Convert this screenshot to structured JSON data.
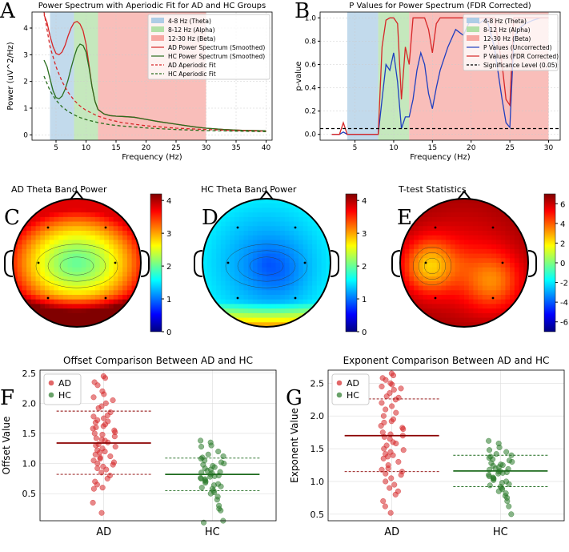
{
  "panel_letters": [
    "A",
    "B",
    "C",
    "D",
    "E",
    "F",
    "G"
  ],
  "chart_data": [
    {
      "id": "A",
      "type": "line",
      "title": "Power Spectrum with Aperiodic Fit for AD and HC Groups",
      "xlabel": "Frequency (Hz)",
      "ylabel": "Power (uV^2/Hz)",
      "xlim": [
        1,
        41
      ],
      "ylim": [
        -0.2,
        4.6
      ],
      "xticks": [
        5,
        10,
        15,
        20,
        25,
        30,
        35,
        40
      ],
      "yticks": [
        0,
        1,
        2,
        3,
        4
      ],
      "grid": true,
      "legend_position": "top-right",
      "bands": [
        {
          "name": "4-8 Hz (Theta)",
          "range": [
            4,
            8
          ],
          "color": "#aecde6"
        },
        {
          "name": "8-12 Hz (Alpha)",
          "range": [
            8,
            12
          ],
          "color": "#b2e0a7"
        },
        {
          "name": "12-30 Hz (Beta)",
          "range": [
            12,
            30
          ],
          "color": "#f7a8a3"
        }
      ],
      "series": [
        {
          "name": "AD Power Spectrum (Smoothed)",
          "color": "#d62728",
          "style": "solid",
          "x": [
            3,
            3.5,
            4,
            4.5,
            5,
            5.5,
            6,
            6.5,
            7,
            7.5,
            8,
            8.5,
            9,
            9.5,
            10,
            10.5,
            11,
            11.5,
            12,
            13,
            14,
            15,
            16,
            18,
            20,
            22,
            25,
            28,
            30,
            33,
            36,
            40
          ],
          "y": [
            4.5,
            4.2,
            3.7,
            3.3,
            3.05,
            3.0,
            3.1,
            3.35,
            3.7,
            4.0,
            4.2,
            4.25,
            4.15,
            3.9,
            3.4,
            2.6,
            1.8,
            1.25,
            0.95,
            0.78,
            0.72,
            0.7,
            0.69,
            0.66,
            0.58,
            0.5,
            0.4,
            0.3,
            0.25,
            0.2,
            0.17,
            0.15
          ]
        },
        {
          "name": "HC Power Spectrum (Smoothed)",
          "color": "#2a6e1e",
          "style": "solid",
          "x": [
            3,
            3.5,
            4,
            4.5,
            5,
            5.5,
            6,
            6.5,
            7,
            7.5,
            8,
            8.5,
            9,
            9.5,
            10,
            10.5,
            11,
            11.5,
            12,
            13,
            14,
            15,
            16,
            18,
            20,
            22,
            25,
            28,
            30,
            33,
            36,
            40
          ],
          "y": [
            2.8,
            2.55,
            2.1,
            1.65,
            1.4,
            1.35,
            1.45,
            1.7,
            2.05,
            2.5,
            2.9,
            3.25,
            3.4,
            3.35,
            3.1,
            2.5,
            1.8,
            1.25,
            0.95,
            0.78,
            0.72,
            0.7,
            0.69,
            0.66,
            0.58,
            0.5,
            0.4,
            0.3,
            0.25,
            0.2,
            0.17,
            0.15
          ]
        },
        {
          "name": "AD Aperiodic Fit",
          "color": "#d62728",
          "style": "dashed",
          "x": [
            3,
            4,
            5,
            6,
            7,
            8,
            9,
            10,
            12,
            14,
            16,
            20,
            25,
            30,
            35,
            40
          ],
          "y": [
            4.6,
            3.3,
            2.55,
            2.0,
            1.6,
            1.3,
            1.08,
            0.92,
            0.7,
            0.56,
            0.46,
            0.34,
            0.25,
            0.2,
            0.16,
            0.14
          ]
        },
        {
          "name": "HC Aperiodic Fit",
          "color": "#2a6e1e",
          "style": "dashed",
          "x": [
            3,
            4,
            5,
            6,
            7,
            8,
            9,
            10,
            12,
            14,
            16,
            20,
            25,
            30,
            35,
            40
          ],
          "y": [
            2.2,
            1.65,
            1.3,
            1.05,
            0.88,
            0.75,
            0.65,
            0.57,
            0.46,
            0.38,
            0.33,
            0.26,
            0.2,
            0.16,
            0.14,
            0.12
          ]
        }
      ]
    },
    {
      "id": "B",
      "type": "line",
      "title": "P Values for Power Spectrum (FDR Corrected)",
      "xlabel": "Frequency (Hz)",
      "ylabel": "p-value",
      "xlim": [
        0.5,
        31.5
      ],
      "ylim": [
        -0.05,
        1.05
      ],
      "xticks": [
        5,
        10,
        15,
        20,
        25,
        30
      ],
      "yticks": [
        0.0,
        0.2,
        0.4,
        0.6,
        0.8,
        1.0
      ],
      "grid": true,
      "legend_position": "top-right",
      "bands": [
        {
          "name": "4-8 Hz (Theta)",
          "range": [
            4,
            8
          ],
          "color": "#aecde6"
        },
        {
          "name": "8-12 Hz (Alpha)",
          "range": [
            8,
            12
          ],
          "color": "#b2e0a7"
        },
        {
          "name": "12-30 Hz (Beta)",
          "range": [
            12,
            30
          ],
          "color": "#f7a8a3"
        }
      ],
      "series": [
        {
          "name": "P Values (Uncorrected)",
          "color": "#1f3fbf",
          "style": "solid",
          "x": [
            2,
            3,
            3.5,
            4,
            5,
            6,
            7,
            8,
            8.5,
            9,
            9.5,
            10,
            10.5,
            11,
            11.5,
            12,
            12.5,
            13,
            13.5,
            14,
            14.5,
            15,
            15.5,
            16,
            17,
            18,
            19,
            20,
            21,
            22,
            23,
            24,
            24.5,
            25,
            25.5,
            26,
            27,
            28,
            29,
            30
          ],
          "y": [
            0.0,
            0.0,
            0.02,
            0.0,
            0.0,
            0.0,
            0.0,
            0.0,
            0.3,
            0.6,
            0.55,
            0.7,
            0.45,
            0.05,
            0.15,
            0.15,
            0.3,
            0.55,
            0.7,
            0.6,
            0.35,
            0.22,
            0.4,
            0.55,
            0.75,
            0.9,
            0.85,
            1.0,
            0.95,
            1.0,
            0.75,
            0.3,
            0.1,
            0.06,
            0.8,
            0.9,
            0.95,
            0.98,
            1.0,
            1.0
          ]
        },
        {
          "name": "P Values (FDR Corrected)",
          "color": "#d62728",
          "style": "solid",
          "x": [
            2,
            3,
            3.5,
            4,
            5,
            6,
            7,
            8,
            8.5,
            9,
            9.5,
            10,
            10.5,
            11,
            11.5,
            12,
            12.5,
            13,
            13.5,
            14,
            14.5,
            15,
            15.5,
            16,
            17,
            18,
            19,
            20,
            21,
            22,
            23,
            24,
            24.5,
            25,
            25.5,
            26,
            27,
            28,
            29,
            30
          ],
          "y": [
            0.0,
            0.0,
            0.1,
            0.0,
            0.0,
            0.0,
            0.0,
            0.0,
            0.75,
            0.98,
            1.0,
            1.0,
            0.95,
            0.3,
            0.75,
            0.6,
            1.0,
            1.0,
            1.0,
            1.0,
            0.9,
            0.7,
            0.95,
            1.0,
            1.0,
            1.0,
            1.0,
            1.0,
            1.0,
            1.0,
            1.0,
            0.6,
            0.3,
            0.25,
            1.0,
            1.0,
            1.0,
            1.0,
            1.0,
            1.0
          ]
        },
        {
          "name": "Significance Level (0.05)",
          "color": "#000000",
          "style": "dashed",
          "x": [
            0.5,
            31.5
          ],
          "y": [
            0.05,
            0.05
          ]
        }
      ]
    },
    {
      "id": "C",
      "type": "heatmap",
      "title": "AD Theta Band Power",
      "colorbar_ticks": [
        0,
        1,
        2,
        3,
        4
      ],
      "clim": [
        0,
        4.2
      ],
      "colormap": "jet",
      "center_value": 2.0,
      "edge_value": 3.6
    },
    {
      "id": "D",
      "type": "heatmap",
      "title": "HC Theta Band Power",
      "colorbar_ticks": [
        0,
        1,
        2,
        3,
        4
      ],
      "clim": [
        0,
        4.2
      ],
      "colormap": "jet",
      "center_value": 1.0,
      "edge_value": 1.6
    },
    {
      "id": "E",
      "type": "heatmap",
      "title": "T-test Statistics",
      "colorbar_ticks": [
        -6,
        -4,
        -2,
        0,
        2,
        4,
        6
      ],
      "clim": [
        -7,
        7
      ],
      "colormap": "jet",
      "center_value": 4.5,
      "edge_value": 6.5
    },
    {
      "id": "F",
      "type": "scatter",
      "title": "Offset Comparison Between AD and HC",
      "xlabel": "",
      "ylabel": "Offset Value",
      "categories": [
        "AD",
        "HC"
      ],
      "ylim": [
        0.05,
        2.55
      ],
      "yticks": [
        0.5,
        1.0,
        1.5,
        2.0,
        2.5
      ],
      "grid": true,
      "legend_position": "top-left",
      "series": [
        {
          "name": "AD",
          "color": "#d62728",
          "mean": 1.34,
          "sd_upper": 1.87,
          "sd_lower": 0.82,
          "values": [
            2.45,
            2.42,
            2.35,
            2.3,
            2.2,
            2.15,
            2.1,
            2.05,
            2.0,
            1.95,
            1.92,
            1.85,
            1.8,
            1.78,
            1.75,
            1.72,
            1.7,
            1.68,
            1.65,
            1.62,
            1.6,
            1.58,
            1.55,
            1.52,
            1.5,
            1.48,
            1.45,
            1.42,
            1.4,
            1.38,
            1.35,
            1.32,
            1.3,
            1.28,
            1.25,
            1.22,
            1.2,
            1.18,
            1.15,
            1.12,
            1.1,
            1.08,
            1.05,
            1.02,
            1.0,
            0.98,
            0.95,
            0.92,
            0.9,
            0.85,
            0.8,
            0.75,
            0.7,
            0.65,
            0.6,
            0.58,
            0.35,
            0.18
          ]
        },
        {
          "name": "HC",
          "color": "#2a7a2a",
          "mean": 0.82,
          "sd_upper": 1.09,
          "sd_lower": 0.55,
          "values": [
            1.38,
            1.35,
            1.3,
            1.28,
            1.2,
            1.15,
            1.12,
            1.1,
            1.08,
            1.05,
            1.02,
            1.0,
            0.98,
            0.96,
            0.94,
            0.92,
            0.9,
            0.88,
            0.86,
            0.85,
            0.84,
            0.82,
            0.8,
            0.79,
            0.78,
            0.76,
            0.75,
            0.74,
            0.72,
            0.7,
            0.68,
            0.66,
            0.64,
            0.62,
            0.6,
            0.58,
            0.55,
            0.52,
            0.5,
            0.45,
            0.4,
            0.3,
            0.25,
            0.22,
            0.05,
            0.02
          ]
        }
      ]
    },
    {
      "id": "G",
      "type": "scatter",
      "title": "Exponent Comparison Between AD and HC",
      "xlabel": "",
      "ylabel": "Exponent Value",
      "categories": [
        "AD",
        "HC"
      ],
      "ylim": [
        0.4,
        2.7
      ],
      "yticks": [
        0.5,
        1.0,
        1.5,
        2.0,
        2.5
      ],
      "grid": true,
      "legend_position": "top-left",
      "series": [
        {
          "name": "AD",
          "color": "#d62728",
          "mean": 1.7,
          "sd_upper": 2.26,
          "sd_lower": 1.15,
          "values": [
            2.65,
            2.62,
            2.58,
            2.55,
            2.5,
            2.48,
            2.45,
            2.42,
            2.4,
            2.35,
            2.3,
            2.28,
            2.25,
            2.2,
            2.15,
            2.1,
            2.05,
            2.0,
            1.95,
            1.92,
            1.9,
            1.85,
            1.82,
            1.8,
            1.75,
            1.72,
            1.7,
            1.68,
            1.65,
            1.6,
            1.58,
            1.55,
            1.5,
            1.48,
            1.45,
            1.42,
            1.4,
            1.38,
            1.35,
            1.3,
            1.25,
            1.2,
            1.18,
            1.15,
            1.12,
            1.1,
            1.05,
            1.0,
            0.95,
            0.9,
            0.85,
            0.8,
            0.7,
            0.62,
            0.52
          ]
        },
        {
          "name": "HC",
          "color": "#2a7a2a",
          "mean": 1.16,
          "sd_upper": 1.4,
          "sd_lower": 0.92,
          "values": [
            1.62,
            1.58,
            1.52,
            1.48,
            1.45,
            1.42,
            1.4,
            1.38,
            1.36,
            1.34,
            1.32,
            1.3,
            1.28,
            1.26,
            1.25,
            1.24,
            1.22,
            1.2,
            1.19,
            1.18,
            1.16,
            1.15,
            1.14,
            1.13,
            1.12,
            1.1,
            1.08,
            1.06,
            1.05,
            1.04,
            1.02,
            1.0,
            0.98,
            0.96,
            0.94,
            0.92,
            0.9,
            0.88,
            0.85,
            0.82,
            0.78,
            0.75,
            0.7,
            0.62,
            0.5
          ]
        }
      ]
    }
  ]
}
